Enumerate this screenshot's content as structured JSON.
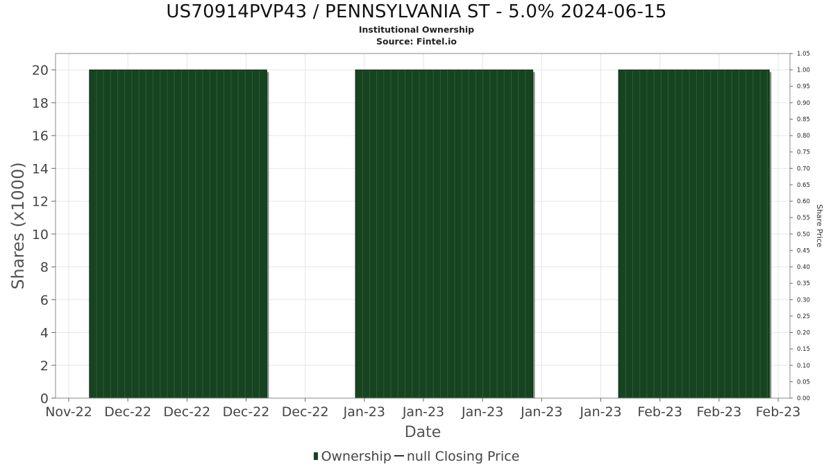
{
  "title": "US70914PVP43 / PENNSYLVANIA ST - 5.0% 2024-06-15",
  "subtitle_1": "Institutional Ownership",
  "subtitle_2": "Source: Fintel.io",
  "legend": {
    "ownership_label": "Ownership",
    "price_label": "null Closing Price"
  },
  "colors": {
    "bar_fill": "#164420",
    "bar_line": "#2d5e34",
    "bar_shadow": "#888888",
    "grid": "#e6e6e6",
    "frame": "#888888"
  },
  "chart_data": {
    "type": "bar",
    "title": "US70914PVP43 / PENNSYLVANIA ST - 5.0% 2024-06-15",
    "xlabel": "Date",
    "ylabel": "Shares (x1000)",
    "y2label": "Share Price",
    "ylim": [
      0,
      21
    ],
    "y2lim": [
      0,
      1.05
    ],
    "yticks": [
      0,
      2,
      4,
      6,
      8,
      10,
      12,
      14,
      16,
      18,
      20
    ],
    "y2ticks": [
      "0.00",
      "0.05",
      "0.10",
      "0.15",
      "0.20",
      "0.25",
      "0.30",
      "0.35",
      "0.40",
      "0.45",
      "0.50",
      "0.55",
      "0.60",
      "0.65",
      "0.70",
      "0.75",
      "0.80",
      "0.85",
      "0.90",
      "0.95",
      "1.00",
      "1.05"
    ],
    "xticks": [
      "Nov-22",
      "Dec-22",
      "Dec-22",
      "Dec-22",
      "Dec-22",
      "Jan-23",
      "Jan-23",
      "Jan-23",
      "Jan-23",
      "Jan-23",
      "Feb-23",
      "Feb-23",
      "Feb-23"
    ],
    "series": [
      {
        "name": "Ownership",
        "blocks": [
          {
            "start": "Nov-22",
            "end": "Dec-22",
            "value": 20
          },
          {
            "start": "Jan-23",
            "end": "Jan-23",
            "value": 20
          },
          {
            "start": "Jan-23",
            "end": "Feb-23",
            "value": 20
          }
        ]
      },
      {
        "name": "null Closing Price",
        "values": []
      }
    ],
    "grid": true,
    "legend_position": "bottom-center"
  }
}
